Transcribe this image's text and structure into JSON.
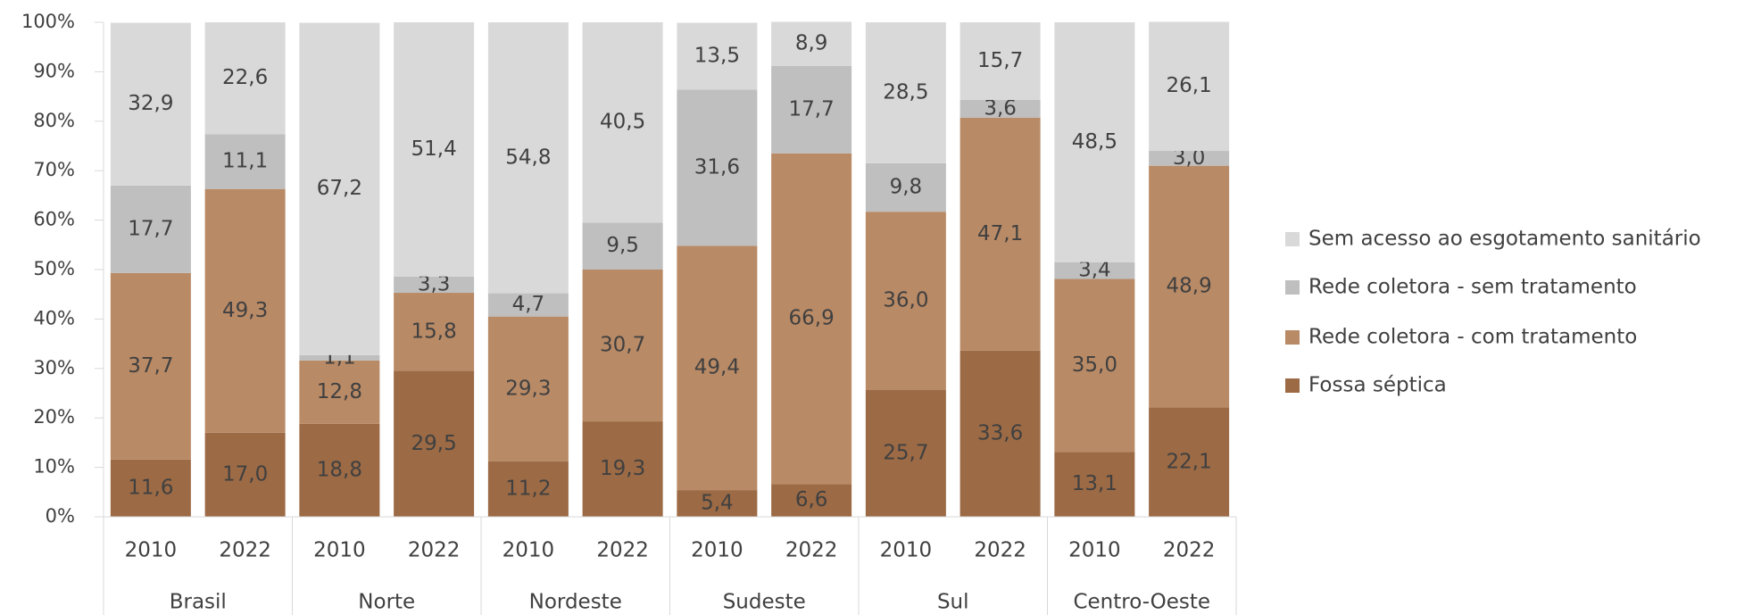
{
  "chart_data": {
    "type": "stacked_bar",
    "categories": [
      "2010",
      "2022",
      "2010",
      "2022",
      "2010",
      "2022",
      "2010",
      "2022",
      "2010",
      "2022",
      "2010",
      "2022"
    ],
    "groups": [
      "Brasil",
      "Norte",
      "Nordeste",
      "Sudeste",
      "Sul",
      "Centro-Oeste"
    ],
    "series": [
      {
        "name": "Fossa séptica",
        "color": "#9c6a45",
        "values": [
          11.6,
          17.0,
          18.8,
          29.5,
          11.2,
          19.3,
          5.4,
          6.6,
          25.7,
          33.6,
          13.1,
          22.1
        ],
        "value_labels": [
          "11,6",
          "17,0",
          "18,8",
          "29,5",
          "11,2",
          "19,3",
          "5,4",
          "6,6",
          "25,7",
          "33,6",
          "13,1",
          "22,1"
        ]
      },
      {
        "name": "Rede coletora - com tratamento",
        "color": "#b98a66",
        "values": [
          37.7,
          49.3,
          12.8,
          15.8,
          29.3,
          30.7,
          49.4,
          66.9,
          36.0,
          47.1,
          35.0,
          48.9
        ],
        "value_labels": [
          "37,7",
          "49,3",
          "12,8",
          "15,8",
          "29,3",
          "30,7",
          "49,4",
          "66,9",
          "36,0",
          "47,1",
          "35,0",
          "48,9"
        ]
      },
      {
        "name": "Rede coletora - sem tratamento",
        "color": "#bfbfbf",
        "values": [
          17.7,
          11.1,
          1.1,
          3.3,
          4.7,
          9.5,
          31.6,
          17.7,
          9.8,
          3.6,
          3.4,
          3.0
        ],
        "value_labels": [
          "17,7",
          "11,1",
          "1,1",
          "3,3",
          "4,7",
          "9,5",
          "31,6",
          "17,7",
          "9,8",
          "3,6",
          "3,4",
          "3,0"
        ]
      },
      {
        "name": "Sem acesso ao esgotamento sanitário",
        "color": "#d9d9d9",
        "values": [
          32.9,
          22.6,
          67.2,
          51.4,
          54.8,
          40.5,
          13.5,
          8.9,
          28.5,
          15.7,
          48.5,
          26.1
        ],
        "value_labels": [
          "32,9",
          "22,6",
          "67,2",
          "51,4",
          "54,8",
          "40,5",
          "13,5",
          "8,9",
          "28,5",
          "15,7",
          "48,5",
          "26,1"
        ]
      }
    ],
    "ylim": [
      0,
      100
    ],
    "yticks": [
      {
        "value": 0,
        "label": "0%"
      },
      {
        "value": 10,
        "label": "10%"
      },
      {
        "value": 20,
        "label": "20%"
      },
      {
        "value": 30,
        "label": "30%"
      },
      {
        "value": 40,
        "label": "40%"
      },
      {
        "value": 50,
        "label": "50%"
      },
      {
        "value": 60,
        "label": "60%"
      },
      {
        "value": 70,
        "label": "70%"
      },
      {
        "value": 80,
        "label": "80%"
      },
      {
        "value": 90,
        "label": "90%"
      },
      {
        "value": 100,
        "label": "100%"
      }
    ],
    "legend": "right"
  }
}
